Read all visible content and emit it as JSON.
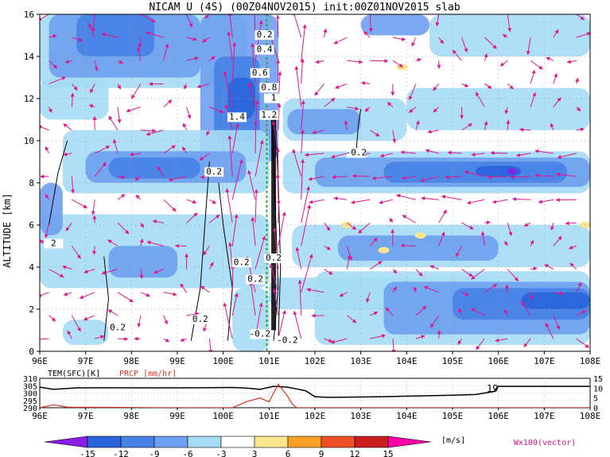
{
  "figure": {
    "title": "NICAM U (4S) (00Z04NOV2015) init:00Z01NOV2015 slab",
    "shading_units": "[m/s]",
    "vector_label": "Wx100(vector)"
  },
  "chart_data": [
    {
      "type": "heatmap",
      "title": "NICAM U (4S) (00Z04NOV2015) init:00Z01NOV2015 slab",
      "ylabel": "ALTITUDE [km]",
      "x_ticks": [
        "96E",
        "97E",
        "98E",
        "99E",
        "100E",
        "101E",
        "102E",
        "103E",
        "104E",
        "105E",
        "106E",
        "107E",
        "108E"
      ],
      "y_ticks": [
        "0",
        "2",
        "4",
        "6",
        "8",
        "10",
        "12",
        "14",
        "16"
      ],
      "xlim": [
        96,
        108
      ],
      "ylim": [
        0,
        16
      ],
      "grid": true,
      "marker_line_x": 100.95,
      "shading_levels": [
        -15,
        -12,
        -9,
        -6,
        -3,
        3,
        6,
        9,
        12,
        15
      ],
      "colorbar_colors": [
        "#8a1ee6",
        "#2a64dc",
        "#4682e6",
        "#6ea0f0",
        "#a5dcf5",
        "#ffffff",
        "#fae68c",
        "#faa028",
        "#f05028",
        "#c81e1e",
        "#ff00aa"
      ],
      "colorbar_labels": [
        "-15",
        "-12",
        "-9",
        "-6",
        "-3",
        "3",
        "6",
        "9",
        "12",
        "15"
      ],
      "units": "[m/s]",
      "contour_labels": [
        "0.2",
        "0.4",
        "0.6",
        "0.8",
        "1",
        "1.2",
        "1.4",
        "-0.2",
        "0.2",
        "0.2",
        "0.2",
        "0.2",
        "-0.2",
        "-0.2",
        "0.2",
        "0.2",
        "2"
      ],
      "vector_label": "Wx100(vector)"
    },
    {
      "type": "line",
      "left_axis_title": "TEM(SFC)[K]",
      "right_axis_title": "PRCP [mm/hr]",
      "x_ticks": [
        "96E",
        "97E",
        "98E",
        "99E",
        "100E",
        "101E",
        "102E",
        "103E",
        "104E",
        "105E",
        "106E",
        "107E",
        "108E"
      ],
      "left_ticks": [
        "310",
        "305",
        "300",
        "295",
        "290"
      ],
      "right_ticks": [
        "15",
        "10",
        "5",
        "0"
      ],
      "annotation": "19",
      "xlim": [
        96,
        108
      ],
      "series": [
        {
          "name": "TEM(SFC)[K]",
          "color": "#000000",
          "x": [
            96,
            96.3,
            96.8,
            97.5,
            98.5,
            99.5,
            100.2,
            100.5,
            100.8,
            101.1,
            101.4,
            101.6,
            101.8,
            102.0,
            102.3,
            102.8,
            103.5,
            104.2,
            105.0,
            105.5,
            105.9,
            106.0,
            106.2,
            107.0,
            108.0
          ],
          "y": [
            304,
            302.5,
            303.5,
            303.6,
            303.5,
            303.6,
            303.8,
            303.4,
            302.5,
            304.5,
            304,
            302.8,
            301.5,
            297.5,
            297,
            297.2,
            297.5,
            298,
            298.5,
            299,
            301,
            304.5,
            304.5,
            304.5,
            304.5
          ]
        },
        {
          "name": "PRCP [mm/hr]",
          "color": "#e03020",
          "x": [
            96,
            96.3,
            96.6,
            97.5,
            98.5,
            99.5,
            100.2,
            100.5,
            100.8,
            101.0,
            101.2,
            101.4,
            101.5,
            101.6,
            102,
            103,
            104,
            105,
            106,
            107,
            108
          ],
          "y": [
            0,
            1.5,
            0.3,
            0.2,
            0,
            0,
            0,
            3,
            5,
            3,
            12,
            6,
            2,
            0,
            0,
            0,
            0,
            0,
            0,
            0,
            0
          ]
        }
      ]
    }
  ]
}
